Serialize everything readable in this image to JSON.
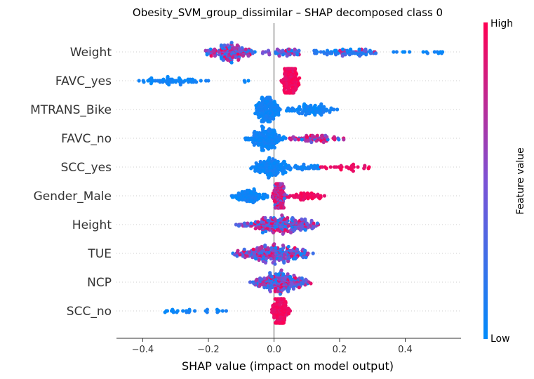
{
  "chart_data": {
    "type": "scatter",
    "subtype": "shap-beeswarm",
    "title": "Obesity_SVM_group_dissimilar – SHAP decomposed class 0",
    "xlabel": "SHAP value (impact on model output)",
    "xlim": [
      -0.48,
      0.57
    ],
    "xticks": [
      -0.4,
      -0.2,
      0.0,
      0.2,
      0.4
    ],
    "xtick_labels": [
      "−0.4",
      "−0.2",
      "0.0",
      "0.2",
      "0.4"
    ],
    "colorbar": {
      "label": "Feature value",
      "high": "High",
      "low": "Low",
      "low_color": "#008bfb",
      "mid_color": "#7c52d5",
      "high_color": "#ff0052"
    },
    "grid": false,
    "features": [
      {
        "name": "Weight",
        "segments": [
          {
            "from": -0.22,
            "to": -0.05,
            "n": 150,
            "color": "mixed"
          },
          {
            "from": -0.05,
            "to": 0.1,
            "n": 50,
            "color": "mixed"
          },
          {
            "from": 0.1,
            "to": 0.35,
            "n": 80,
            "color": "mixed-low"
          },
          {
            "from": 0.35,
            "to": 0.53,
            "n": 14,
            "color": "low"
          }
        ]
      },
      {
        "name": "FAVC_yes",
        "segments": [
          {
            "from": -0.44,
            "to": -0.19,
            "n": 60,
            "color": "low"
          },
          {
            "from": -0.14,
            "to": -0.03,
            "n": 3,
            "color": "low"
          },
          {
            "from": 0.02,
            "to": 0.08,
            "n": 160,
            "color": "high"
          }
        ]
      },
      {
        "name": "MTRANS_Bike",
        "segments": [
          {
            "from": -0.06,
            "to": 0.02,
            "n": 160,
            "color": "low"
          },
          {
            "from": 0.02,
            "to": 0.2,
            "n": 90,
            "color": "low"
          }
        ]
      },
      {
        "name": "FAVC_no",
        "segments": [
          {
            "from": -0.09,
            "to": 0.04,
            "n": 150,
            "color": "low"
          },
          {
            "from": 0.04,
            "to": 0.22,
            "n": 70,
            "color": "mixed-high"
          }
        ]
      },
      {
        "name": "SCC_yes",
        "segments": [
          {
            "from": -0.08,
            "to": 0.06,
            "n": 140,
            "color": "low"
          },
          {
            "from": 0.06,
            "to": 0.14,
            "n": 30,
            "color": "low"
          },
          {
            "from": 0.14,
            "to": 0.29,
            "n": 30,
            "color": "high"
          }
        ]
      },
      {
        "name": "Gender_Male",
        "segments": [
          {
            "from": -0.14,
            "to": -0.01,
            "n": 90,
            "color": "low"
          },
          {
            "from": -0.01,
            "to": 0.04,
            "n": 110,
            "color": "mixed-high"
          },
          {
            "from": 0.04,
            "to": 0.16,
            "n": 50,
            "color": "high"
          }
        ]
      },
      {
        "name": "Height",
        "segments": [
          {
            "from": -0.12,
            "to": 0.15,
            "n": 240,
            "color": "mixed"
          }
        ]
      },
      {
        "name": "TUE",
        "segments": [
          {
            "from": -0.14,
            "to": 0.13,
            "n": 240,
            "color": "mixed"
          }
        ]
      },
      {
        "name": "NCP",
        "segments": [
          {
            "from": -0.08,
            "to": 0.12,
            "n": 220,
            "color": "mixed"
          }
        ]
      },
      {
        "name": "SCC_no",
        "segments": [
          {
            "from": -0.34,
            "to": -0.14,
            "n": 24,
            "color": "low"
          },
          {
            "from": -0.01,
            "to": 0.05,
            "n": 170,
            "color": "high"
          }
        ]
      }
    ]
  }
}
